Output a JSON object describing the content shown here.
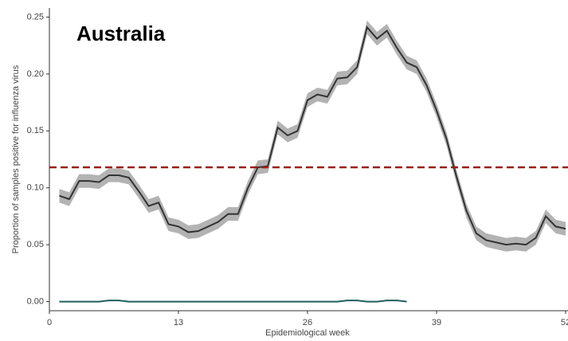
{
  "chart_data": {
    "type": "line",
    "title": "Australia",
    "xlabel": "Epidemiological week",
    "ylabel": "Proportion of samples positive for influenza virus",
    "xlim": [
      0,
      52
    ],
    "ylim": [
      -0.008,
      0.258
    ],
    "xticks": [
      0,
      13,
      26,
      39,
      52
    ],
    "yticks": [
      {
        "value": 0,
        "label": "0.00"
      },
      0.05,
      {
        "value": 0.1,
        "label": "0.10"
      },
      0.15,
      {
        "value": 0.2,
        "label": "0.20"
      },
      0.25
    ],
    "threshold": {
      "value": 0.118,
      "color": "#9b1c1c"
    },
    "series": [
      {
        "color": "#333333",
        "band_color": "#b3b3b3",
        "x": [
          1,
          2,
          3,
          4,
          5,
          6,
          7,
          8,
          9,
          10,
          11,
          12,
          13,
          14,
          15,
          16,
          17,
          18,
          19,
          20,
          21,
          22,
          23,
          24,
          25,
          26,
          27,
          28,
          29,
          30,
          31,
          32,
          33,
          34,
          35,
          36,
          37,
          38,
          39,
          40,
          41,
          42,
          43,
          44,
          45,
          46,
          47,
          48,
          49,
          50,
          51,
          52
        ],
        "values": [
          0.093,
          0.09,
          0.106,
          0.106,
          0.105,
          0.111,
          0.111,
          0.109,
          0.097,
          0.084,
          0.087,
          0.068,
          0.066,
          0.061,
          0.062,
          0.066,
          0.07,
          0.077,
          0.077,
          0.1,
          0.118,
          0.119,
          0.153,
          0.146,
          0.15,
          0.177,
          0.182,
          0.18,
          0.196,
          0.197,
          0.206,
          0.241,
          0.231,
          0.238,
          0.223,
          0.21,
          0.206,
          0.19,
          0.168,
          0.143,
          0.11,
          0.08,
          0.06,
          0.054,
          0.052,
          0.05,
          0.051,
          0.05,
          0.056,
          0.075,
          0.066,
          0.064
        ],
        "upper": [
          0.099,
          0.096,
          0.112,
          0.112,
          0.111,
          0.117,
          0.117,
          0.115,
          0.103,
          0.09,
          0.093,
          0.074,
          0.072,
          0.067,
          0.068,
          0.072,
          0.076,
          0.083,
          0.083,
          0.106,
          0.124,
          0.125,
          0.159,
          0.152,
          0.156,
          0.183,
          0.188,
          0.186,
          0.202,
          0.203,
          0.212,
          0.247,
          0.237,
          0.244,
          0.229,
          0.216,
          0.212,
          0.196,
          0.174,
          0.149,
          0.116,
          0.086,
          0.066,
          0.06,
          0.058,
          0.056,
          0.057,
          0.056,
          0.062,
          0.081,
          0.072,
          0.07
        ],
        "lower": [
          0.087,
          0.084,
          0.1,
          0.1,
          0.099,
          0.105,
          0.105,
          0.103,
          0.091,
          0.078,
          0.081,
          0.062,
          0.06,
          0.055,
          0.056,
          0.06,
          0.064,
          0.071,
          0.071,
          0.094,
          0.112,
          0.113,
          0.147,
          0.14,
          0.144,
          0.171,
          0.176,
          0.174,
          0.19,
          0.191,
          0.2,
          0.235,
          0.225,
          0.232,
          0.217,
          0.204,
          0.2,
          0.184,
          0.162,
          0.137,
          0.104,
          0.074,
          0.054,
          0.048,
          0.046,
          0.044,
          0.045,
          0.044,
          0.05,
          0.069,
          0.06,
          0.058
        ]
      },
      {
        "color": "#1f5f5b",
        "x": [
          1,
          2,
          3,
          4,
          5,
          6,
          7,
          8,
          9,
          10,
          11,
          12,
          13,
          14,
          15,
          16,
          17,
          18,
          19,
          20,
          21,
          22,
          23,
          24,
          25,
          26,
          27,
          28,
          29,
          30,
          31,
          32,
          33,
          34,
          35,
          36
        ],
        "values": [
          0,
          0,
          0,
          0,
          0,
          0.001,
          0.001,
          0,
          0,
          0,
          0,
          0,
          0,
          0,
          0,
          0,
          0,
          0,
          0,
          0,
          0,
          0,
          0,
          0,
          0,
          0,
          0,
          0,
          0,
          0.001,
          0.001,
          0,
          0,
          0.001,
          0.001,
          0
        ]
      }
    ]
  }
}
